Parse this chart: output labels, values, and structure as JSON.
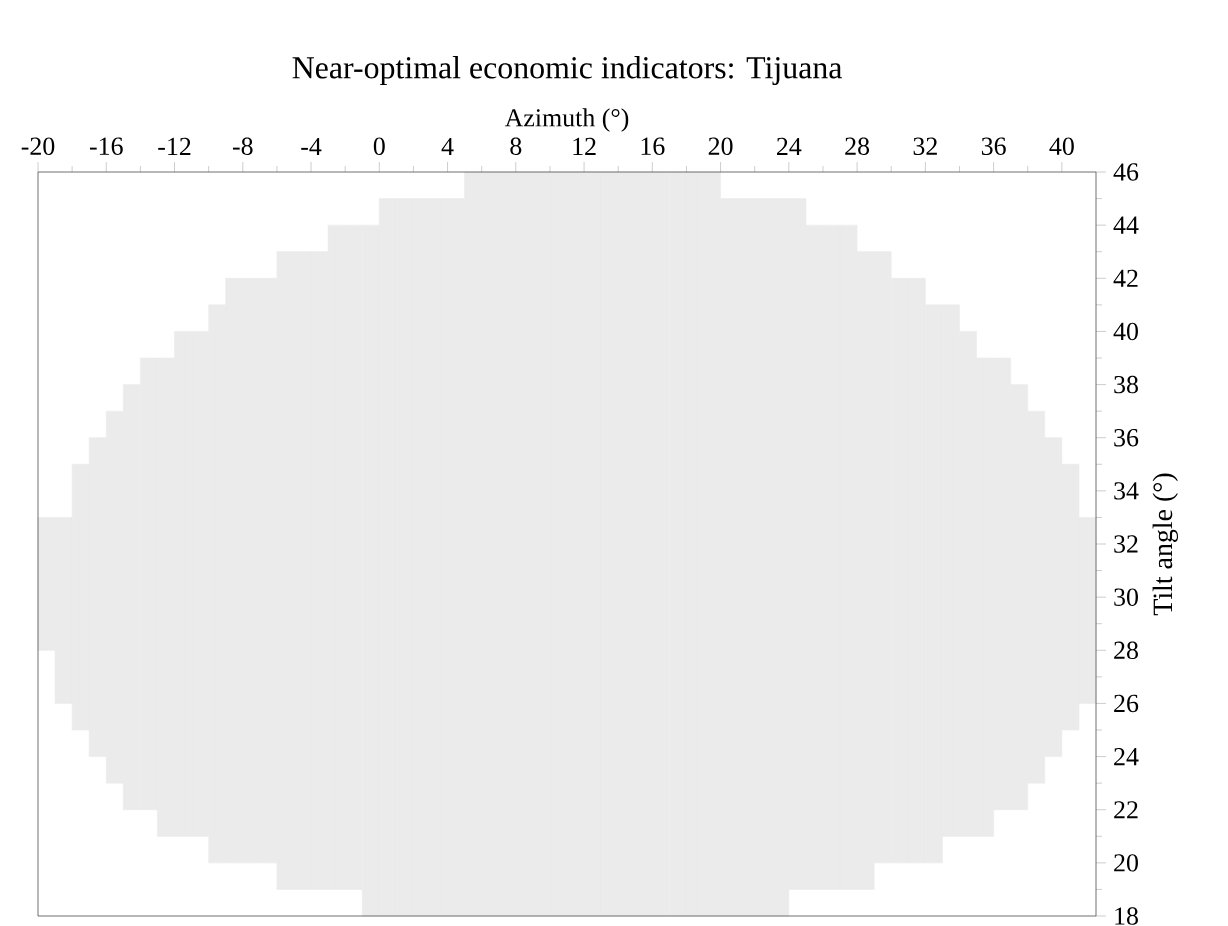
{
  "chart_data": {
    "type": "bar",
    "title": "Near-optimal economic indicators: Tijuana",
    "xlabel": "Azimuth (°)",
    "ylabel": "Tilt angle (°)",
    "x": [
      -19.5,
      -18.5,
      -17.5,
      -16.5,
      -15.5,
      -14.5,
      -13.5,
      -12.5,
      -11.5,
      -10.5,
      -9.5,
      -8.5,
      -7.5,
      -6.5,
      -5.5,
      -4.5,
      -3.5,
      -2.5,
      -1.5,
      -0.5,
      0.5,
      1.5,
      2.5,
      3.5,
      4.5,
      5.5,
      6.5,
      7.5,
      8.5,
      9.5,
      10.5,
      11.5,
      12.5,
      13.5,
      14.5,
      15.5,
      16.5,
      17.5,
      18.5,
      19.5,
      20.5,
      21.5,
      22.5,
      23.5,
      24.5,
      25.5,
      26.5,
      27.5,
      28.5,
      29.5,
      30.5,
      31.5,
      32.5,
      33.5,
      34.5,
      35.5,
      36.5,
      37.5,
      38.5,
      39.5,
      40.5,
      41.5
    ],
    "base": [
      28,
      26,
      25,
      24,
      23,
      22,
      22,
      21,
      21,
      21,
      20,
      20,
      20,
      20,
      19,
      19,
      19,
      19,
      19,
      18,
      18,
      18,
      18,
      18,
      18,
      18,
      18,
      18,
      18,
      18,
      18,
      18,
      18,
      18,
      18,
      18,
      18,
      18,
      18,
      18,
      18,
      18,
      18,
      18,
      19,
      19,
      19,
      19,
      19,
      20,
      20,
      20,
      20,
      21,
      21,
      21,
      22,
      22,
      23,
      24,
      25,
      26
    ],
    "values": [
      5,
      7,
      10,
      12,
      14,
      16,
      17,
      18,
      19,
      19,
      21,
      22,
      22,
      22,
      24,
      24,
      24,
      25,
      25,
      26,
      27,
      27,
      27,
      27,
      27,
      28,
      28,
      28,
      28,
      28,
      28,
      28,
      28,
      28,
      28,
      28,
      28,
      28,
      28,
      28,
      27,
      27,
      27,
      27,
      26,
      25,
      25,
      25,
      24,
      23,
      22,
      22,
      21,
      20,
      19,
      18,
      17,
      16,
      14,
      12,
      10,
      7
    ],
    "color": "#ebebeb",
    "xlim": [
      -20,
      42
    ],
    "ylim": [
      18,
      46
    ],
    "xticks": [
      -20,
      -16,
      -12,
      -8,
      -4,
      0,
      4,
      8,
      12,
      16,
      20,
      24,
      28,
      32,
      36,
      40
    ],
    "yticks": [
      18,
      20,
      22,
      24,
      26,
      28,
      30,
      32,
      34,
      36,
      38,
      40,
      42,
      44,
      46
    ]
  }
}
